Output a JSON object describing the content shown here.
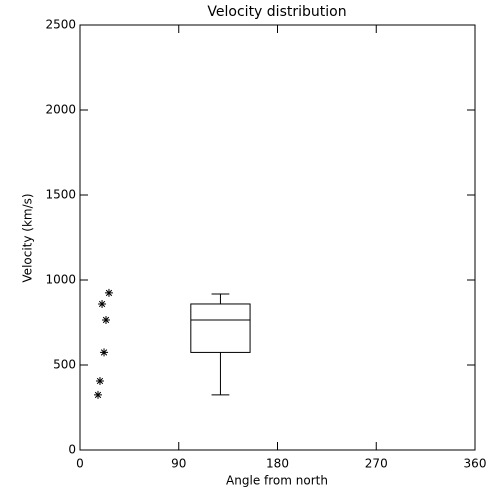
{
  "chart_data": {
    "type": "scatter",
    "title": "Velocity distribution",
    "x_label": "Angle from north",
    "y_label": "Velocity (km/s)",
    "x": [
      16.4,
      18.2,
      20.1,
      21.9,
      23.7,
      26.4
    ],
    "y": [
      324,
      406,
      859,
      574,
      765,
      924
    ],
    "marker": "asterisk",
    "color": "#000000",
    "box": {
      "position": 128,
      "width": 54,
      "min": 324,
      "q1": 574,
      "median": 765,
      "q3": 859,
      "max": 918
    },
    "xlim": [
      0,
      360
    ],
    "xticks": [
      0,
      90,
      180,
      270,
      360
    ],
    "ylim": [
      0,
      2500
    ],
    "yticks": [
      0,
      500,
      1000,
      1500,
      2000,
      2500
    ]
  }
}
